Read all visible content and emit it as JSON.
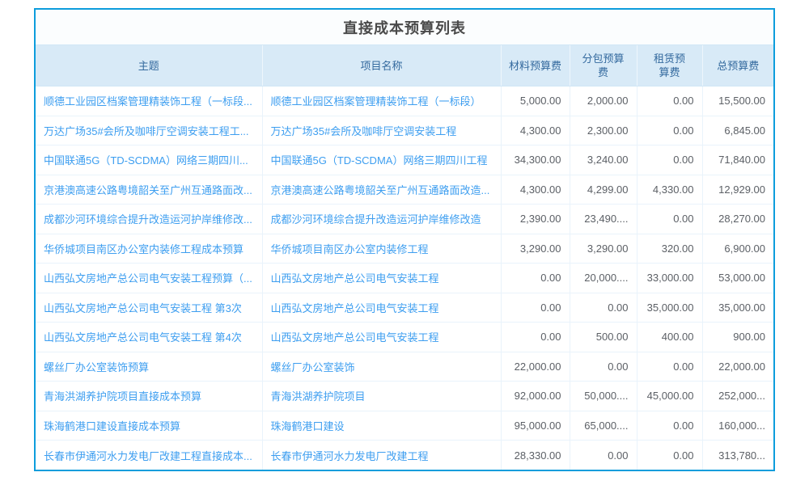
{
  "panel": {
    "title": "直接成本预算列表",
    "border_color": "#0d9ddc",
    "header_bg": "#d8eaf7",
    "header_text_color": "#33699e",
    "link_color": "#3d9ef0",
    "number_color": "#5c6066"
  },
  "table": {
    "headers": [
      {
        "key": "subject",
        "label": "主题"
      },
      {
        "key": "project",
        "label": "项目名称"
      },
      {
        "key": "material",
        "label": "材料预算费"
      },
      {
        "key": "subcontract",
        "label": "分包预算费"
      },
      {
        "key": "rental",
        "label": "租赁预算费"
      },
      {
        "key": "total",
        "label": "总预算费"
      }
    ],
    "rows": [
      {
        "subject": "顺德工业园区档案管理精装饰工程（一标段...",
        "project": "顺德工业园区档案管理精装饰工程（一标段）",
        "material": "5,000.00",
        "subcontract": "2,000.00",
        "rental": "0.00",
        "total": "15,500.00"
      },
      {
        "subject": "万达广场35#会所及咖啡厅空调安装工程工...",
        "project": "万达广场35#会所及咖啡厅空调安装工程",
        "material": "4,300.00",
        "subcontract": "2,300.00",
        "rental": "0.00",
        "total": "6,845.00"
      },
      {
        "subject": "中国联通5G（TD-SCDMA）网络三期四川...",
        "project": "中国联通5G（TD-SCDMA）网络三期四川工程",
        "material": "34,300.00",
        "subcontract": "3,240.00",
        "rental": "0.00",
        "total": "71,840.00"
      },
      {
        "subject": "京港澳高速公路粤境韶关至广州互通路面改...",
        "project": "京港澳高速公路粤境韶关至广州互通路面改造...",
        "material": "4,300.00",
        "subcontract": "4,299.00",
        "rental": "4,330.00",
        "total": "12,929.00"
      },
      {
        "subject": "成都沙河环境综合提升改造运河护岸维修改...",
        "project": "成都沙河环境综合提升改造运河护岸维修改造",
        "material": "2,390.00",
        "subcontract": "23,490....",
        "rental": "0.00",
        "total": "28,270.00"
      },
      {
        "subject": "华侨城项目南区办公室内装修工程成本预算",
        "project": "华侨城项目南区办公室内装修工程",
        "material": "3,290.00",
        "subcontract": "3,290.00",
        "rental": "320.00",
        "total": "6,900.00"
      },
      {
        "subject": "山西弘文房地产总公司电气安装工程预算（...",
        "project": "山西弘文房地产总公司电气安装工程",
        "material": "0.00",
        "subcontract": "20,000....",
        "rental": "33,000.00",
        "total": "53,000.00"
      },
      {
        "subject": "山西弘文房地产总公司电气安装工程 第3次",
        "project": "山西弘文房地产总公司电气安装工程",
        "material": "0.00",
        "subcontract": "0.00",
        "rental": "35,000.00",
        "total": "35,000.00"
      },
      {
        "subject": "山西弘文房地产总公司电气安装工程 第4次",
        "project": "山西弘文房地产总公司电气安装工程",
        "material": "0.00",
        "subcontract": "500.00",
        "rental": "400.00",
        "total": "900.00"
      },
      {
        "subject": "螺丝厂办公室装饰预算",
        "project": "螺丝厂办公室装饰",
        "material": "22,000.00",
        "subcontract": "0.00",
        "rental": "0.00",
        "total": "22,000.00"
      },
      {
        "subject": "青海洪湖养护院项目直接成本预算",
        "project": "青海洪湖养护院项目",
        "material": "92,000.00",
        "subcontract": "50,000....",
        "rental": "45,000.00",
        "total": "252,000..."
      },
      {
        "subject": "珠海鹤港口建设直接成本预算",
        "project": "珠海鹤港口建设",
        "material": "95,000.00",
        "subcontract": "65,000....",
        "rental": "0.00",
        "total": "160,000..."
      },
      {
        "subject": "长春市伊通河水力发电厂改建工程直接成本...",
        "project": "长春市伊通河水力发电厂改建工程",
        "material": "28,330.00",
        "subcontract": "0.00",
        "rental": "0.00",
        "total": "313,780..."
      }
    ]
  }
}
